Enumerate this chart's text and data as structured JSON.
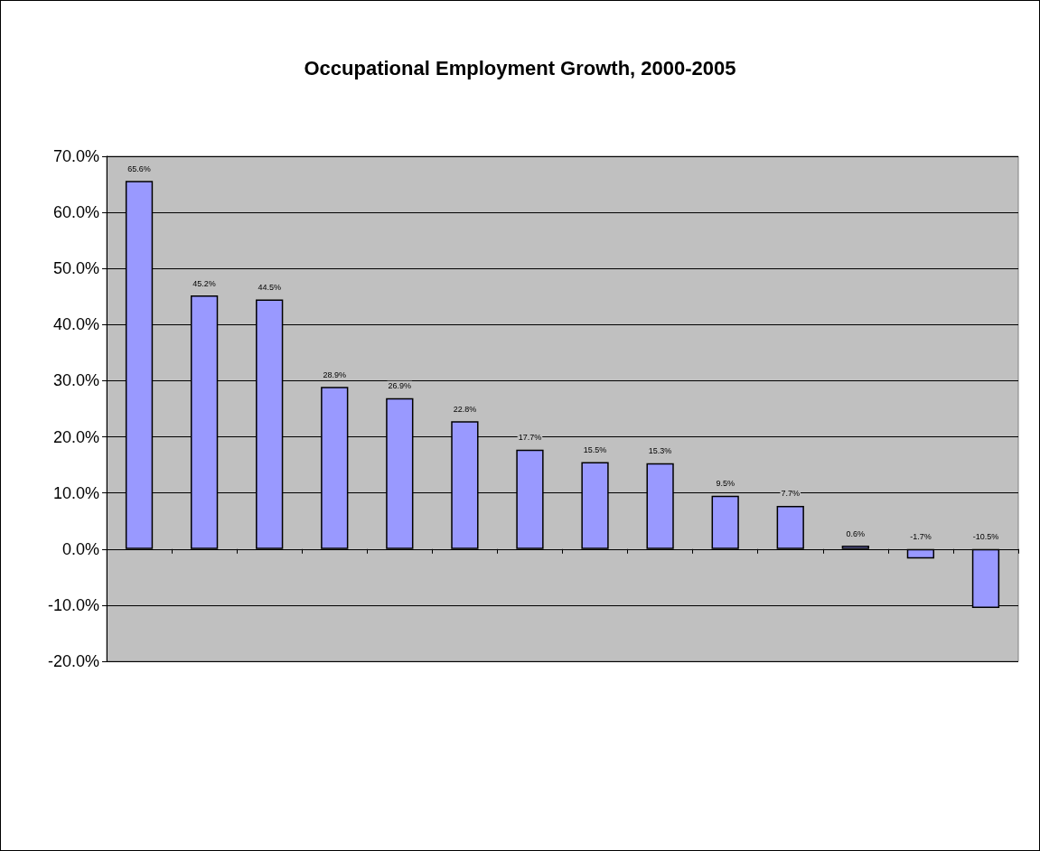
{
  "chart_data": {
    "type": "bar",
    "title": "Occupational Employment Growth, 2000-2005",
    "categories": [
      null,
      null,
      null,
      null,
      null,
      null,
      null,
      null,
      null,
      null,
      null,
      null,
      null,
      null
    ],
    "values": [
      65.6,
      45.2,
      44.5,
      28.9,
      26.9,
      22.8,
      17.7,
      15.5,
      15.3,
      9.5,
      7.7,
      0.6,
      -1.7,
      -10.5
    ],
    "value_labels": [
      "65.6%",
      "45.2%",
      "44.5%",
      "28.9%",
      "26.9%",
      "22.8%",
      "17.7%",
      "15.5%",
      "15.3%",
      "9.5%",
      "7.7%",
      "0.6%",
      "-1.7%",
      "-10.5%"
    ],
    "color": "#9999ff",
    "ylim": [
      -20,
      70
    ],
    "yticks": [
      {
        "value": -20,
        "label": "-20.0%"
      },
      {
        "value": -10,
        "label": "-10.0%"
      },
      {
        "value": 0,
        "label": "0.0%"
      },
      {
        "value": 10,
        "label": "10.0%"
      },
      {
        "value": 20,
        "label": "20.0%"
      },
      {
        "value": 30,
        "label": "30.0%"
      },
      {
        "value": 40,
        "label": "40.0%"
      },
      {
        "value": 50,
        "label": "50.0%"
      },
      {
        "value": 60,
        "label": "60.0%"
      },
      {
        "value": 70,
        "label": "70.0%"
      }
    ],
    "grid": "y"
  }
}
